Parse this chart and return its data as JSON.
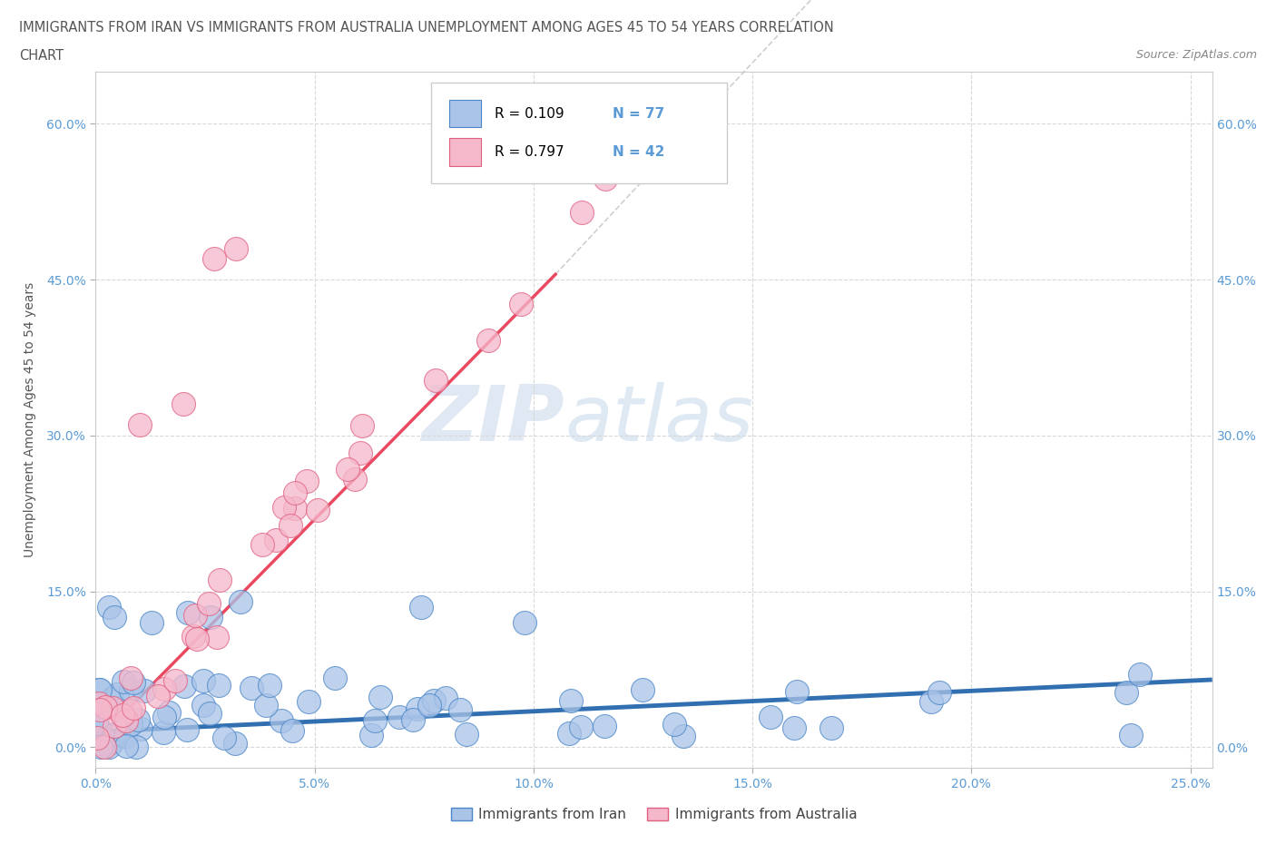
{
  "title_line1": "IMMIGRANTS FROM IRAN VS IMMIGRANTS FROM AUSTRALIA UNEMPLOYMENT AMONG AGES 45 TO 54 YEARS CORRELATION",
  "title_line2": "CHART",
  "source_text": "Source: ZipAtlas.com",
  "ylabel": "Unemployment Among Ages 45 to 54 years",
  "xlim": [
    0.0,
    0.255
  ],
  "ylim": [
    -0.02,
    0.65
  ],
  "xtick_labels": [
    "0.0%",
    "5.0%",
    "10.0%",
    "15.0%",
    "20.0%",
    "25.0%"
  ],
  "xtick_values": [
    0.0,
    0.05,
    0.1,
    0.15,
    0.2,
    0.25
  ],
  "ytick_labels": [
    "0.0%",
    "15.0%",
    "30.0%",
    "45.0%",
    "60.0%"
  ],
  "ytick_values": [
    0.0,
    0.15,
    0.3,
    0.45,
    0.6
  ],
  "iran_color": "#aac4e8",
  "iran_color_dark": "#4a86c8",
  "iran_line_color": "#1a5fa8",
  "australia_color": "#f5b8cb",
  "australia_color_dark": "#e06080",
  "australia_line_color": "#e8405a",
  "iran_R": "0.109",
  "iran_N": "77",
  "australia_R": "0.797",
  "australia_N": "42",
  "watermark_zip": "ZIP",
  "watermark_atlas": "atlas",
  "background_color": "#ffffff",
  "grid_color": "#d8d8d8",
  "title_color": "#555555",
  "label_color": "#5b9bd5",
  "source_color": "#888888"
}
